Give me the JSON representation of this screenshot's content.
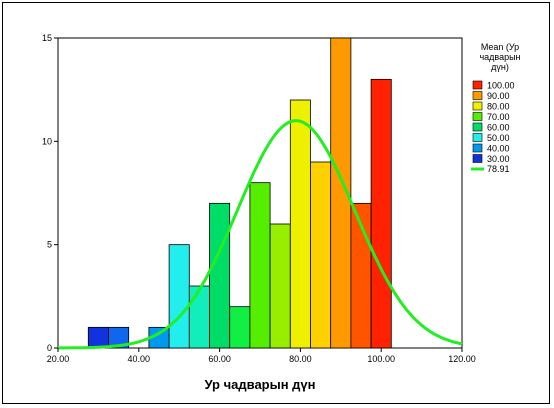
{
  "chart_data": {
    "type": "histogram",
    "title": "",
    "xlabel": "Ур чадварын дүн",
    "ylabel": "",
    "xlim": [
      20,
      120
    ],
    "ylim": [
      0,
      15
    ],
    "x_ticks": [
      "20.00",
      "40.00",
      "60.00",
      "80.00",
      "100.00",
      "120.00"
    ],
    "y_ticks": [
      "0",
      "5",
      "10",
      "15"
    ],
    "grid": false,
    "legend_position": "right",
    "legend_title": "Mean (Ур чадварын дүн)",
    "legend_title_lines": [
      "Mean (Ур",
      "чадварын",
      "дүн)"
    ],
    "legend": [
      {
        "label": "100.00",
        "color": "#ff2200"
      },
      {
        "label": "90.00",
        "color": "#ff9900"
      },
      {
        "label": "80.00",
        "color": "#eef000"
      },
      {
        "label": "70.00",
        "color": "#55ee00"
      },
      {
        "label": "60.00",
        "color": "#00dd66"
      },
      {
        "label": "50.00",
        "color": "#22eeee"
      },
      {
        "label": "40.00",
        "color": "#0099ee"
      },
      {
        "label": "30.00",
        "color": "#1133dd"
      }
    ],
    "normal_curve": {
      "label": "78.91",
      "mean": 78.91,
      "sd": 14.5,
      "peak": 11.0,
      "color": "#22ee22"
    },
    "bins": [
      {
        "x0": 27.5,
        "x1": 32.5,
        "count": 1,
        "color": "#1133dd"
      },
      {
        "x0": 32.5,
        "x1": 37.5,
        "count": 1,
        "color": "#1166ee"
      },
      {
        "x0": 42.5,
        "x1": 47.5,
        "count": 1,
        "color": "#0099ee"
      },
      {
        "x0": 47.5,
        "x1": 52.5,
        "count": 5,
        "color": "#22eeee"
      },
      {
        "x0": 52.5,
        "x1": 57.5,
        "count": 3,
        "color": "#11eebb"
      },
      {
        "x0": 57.5,
        "x1": 62.5,
        "count": 7,
        "color": "#00dd66"
      },
      {
        "x0": 62.5,
        "x1": 67.5,
        "count": 2,
        "color": "#11ee44"
      },
      {
        "x0": 67.5,
        "x1": 72.5,
        "count": 8,
        "color": "#55ee00"
      },
      {
        "x0": 72.5,
        "x1": 77.5,
        "count": 6,
        "color": "#99ee00"
      },
      {
        "x0": 77.5,
        "x1": 82.5,
        "count": 12,
        "color": "#eef000"
      },
      {
        "x0": 82.5,
        "x1": 87.5,
        "count": 9,
        "color": "#ffd000"
      },
      {
        "x0": 87.5,
        "x1": 92.5,
        "count": 15,
        "color": "#ff9900"
      },
      {
        "x0": 92.5,
        "x1": 97.5,
        "count": 7,
        "color": "#ff5500"
      },
      {
        "x0": 97.5,
        "x1": 102.5,
        "count": 13,
        "color": "#ff2200"
      }
    ]
  }
}
